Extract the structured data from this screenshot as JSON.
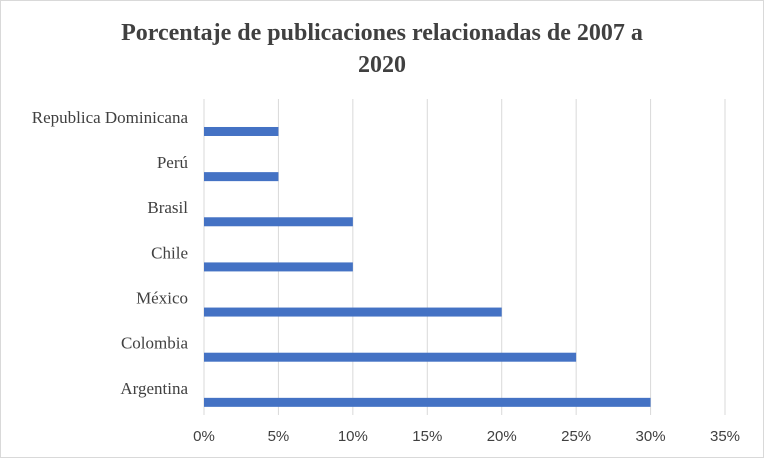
{
  "chart_data": {
    "type": "bar",
    "orientation": "horizontal",
    "title_lines": [
      "Porcentaje de publicaciones relacionadas de 2007 a",
      "2020"
    ],
    "categories": [
      "Republica Dominicana",
      "Perú",
      "Brasil",
      "Chile",
      "México",
      "Colombia",
      "Argentina"
    ],
    "values": [
      5,
      5,
      10,
      10,
      20,
      25,
      30
    ],
    "value_unit": "%",
    "xlim": [
      0,
      35
    ],
    "x_ticks": [
      0,
      5,
      10,
      15,
      20,
      25,
      30,
      35
    ],
    "x_tick_labels": [
      "0%",
      "5%",
      "10%",
      "15%",
      "20%",
      "25%",
      "30%",
      "35%"
    ],
    "grid": "vertical",
    "bar_color": "#4472c4",
    "legend": false
  }
}
